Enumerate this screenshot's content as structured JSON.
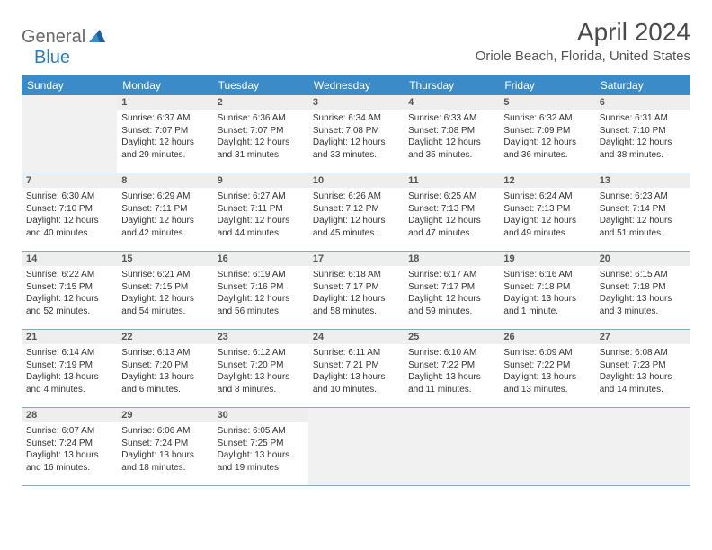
{
  "logo": {
    "word1": "General",
    "word2": "Blue"
  },
  "title": "April 2024",
  "location": "Oriole Beach, Florida, United States",
  "colors": {
    "header_bg": "#3b8bc8",
    "header_text": "#ffffff",
    "daynum_bg": "#eeeeee",
    "empty_bg": "#f1f1f1",
    "row_border": "#8aa8bd",
    "text": "#333333"
  },
  "typography": {
    "title_fontsize": 28,
    "location_fontsize": 15,
    "dayheader_fontsize": 12,
    "cell_fontsize": 10
  },
  "day_headers": [
    "Sunday",
    "Monday",
    "Tuesday",
    "Wednesday",
    "Thursday",
    "Friday",
    "Saturday"
  ],
  "weeks": [
    [
      {
        "blank": true
      },
      {
        "n": "1",
        "sr": "Sunrise: 6:37 AM",
        "ss": "Sunset: 7:07 PM",
        "d1": "Daylight: 12 hours",
        "d2": "and 29 minutes."
      },
      {
        "n": "2",
        "sr": "Sunrise: 6:36 AM",
        "ss": "Sunset: 7:07 PM",
        "d1": "Daylight: 12 hours",
        "d2": "and 31 minutes."
      },
      {
        "n": "3",
        "sr": "Sunrise: 6:34 AM",
        "ss": "Sunset: 7:08 PM",
        "d1": "Daylight: 12 hours",
        "d2": "and 33 minutes."
      },
      {
        "n": "4",
        "sr": "Sunrise: 6:33 AM",
        "ss": "Sunset: 7:08 PM",
        "d1": "Daylight: 12 hours",
        "d2": "and 35 minutes."
      },
      {
        "n": "5",
        "sr": "Sunrise: 6:32 AM",
        "ss": "Sunset: 7:09 PM",
        "d1": "Daylight: 12 hours",
        "d2": "and 36 minutes."
      },
      {
        "n": "6",
        "sr": "Sunrise: 6:31 AM",
        "ss": "Sunset: 7:10 PM",
        "d1": "Daylight: 12 hours",
        "d2": "and 38 minutes."
      }
    ],
    [
      {
        "n": "7",
        "sr": "Sunrise: 6:30 AM",
        "ss": "Sunset: 7:10 PM",
        "d1": "Daylight: 12 hours",
        "d2": "and 40 minutes."
      },
      {
        "n": "8",
        "sr": "Sunrise: 6:29 AM",
        "ss": "Sunset: 7:11 PM",
        "d1": "Daylight: 12 hours",
        "d2": "and 42 minutes."
      },
      {
        "n": "9",
        "sr": "Sunrise: 6:27 AM",
        "ss": "Sunset: 7:11 PM",
        "d1": "Daylight: 12 hours",
        "d2": "and 44 minutes."
      },
      {
        "n": "10",
        "sr": "Sunrise: 6:26 AM",
        "ss": "Sunset: 7:12 PM",
        "d1": "Daylight: 12 hours",
        "d2": "and 45 minutes."
      },
      {
        "n": "11",
        "sr": "Sunrise: 6:25 AM",
        "ss": "Sunset: 7:13 PM",
        "d1": "Daylight: 12 hours",
        "d2": "and 47 minutes."
      },
      {
        "n": "12",
        "sr": "Sunrise: 6:24 AM",
        "ss": "Sunset: 7:13 PM",
        "d1": "Daylight: 12 hours",
        "d2": "and 49 minutes."
      },
      {
        "n": "13",
        "sr": "Sunrise: 6:23 AM",
        "ss": "Sunset: 7:14 PM",
        "d1": "Daylight: 12 hours",
        "d2": "and 51 minutes."
      }
    ],
    [
      {
        "n": "14",
        "sr": "Sunrise: 6:22 AM",
        "ss": "Sunset: 7:15 PM",
        "d1": "Daylight: 12 hours",
        "d2": "and 52 minutes."
      },
      {
        "n": "15",
        "sr": "Sunrise: 6:21 AM",
        "ss": "Sunset: 7:15 PM",
        "d1": "Daylight: 12 hours",
        "d2": "and 54 minutes."
      },
      {
        "n": "16",
        "sr": "Sunrise: 6:19 AM",
        "ss": "Sunset: 7:16 PM",
        "d1": "Daylight: 12 hours",
        "d2": "and 56 minutes."
      },
      {
        "n": "17",
        "sr": "Sunrise: 6:18 AM",
        "ss": "Sunset: 7:17 PM",
        "d1": "Daylight: 12 hours",
        "d2": "and 58 minutes."
      },
      {
        "n": "18",
        "sr": "Sunrise: 6:17 AM",
        "ss": "Sunset: 7:17 PM",
        "d1": "Daylight: 12 hours",
        "d2": "and 59 minutes."
      },
      {
        "n": "19",
        "sr": "Sunrise: 6:16 AM",
        "ss": "Sunset: 7:18 PM",
        "d1": "Daylight: 13 hours",
        "d2": "and 1 minute."
      },
      {
        "n": "20",
        "sr": "Sunrise: 6:15 AM",
        "ss": "Sunset: 7:18 PM",
        "d1": "Daylight: 13 hours",
        "d2": "and 3 minutes."
      }
    ],
    [
      {
        "n": "21",
        "sr": "Sunrise: 6:14 AM",
        "ss": "Sunset: 7:19 PM",
        "d1": "Daylight: 13 hours",
        "d2": "and 4 minutes."
      },
      {
        "n": "22",
        "sr": "Sunrise: 6:13 AM",
        "ss": "Sunset: 7:20 PM",
        "d1": "Daylight: 13 hours",
        "d2": "and 6 minutes."
      },
      {
        "n": "23",
        "sr": "Sunrise: 6:12 AM",
        "ss": "Sunset: 7:20 PM",
        "d1": "Daylight: 13 hours",
        "d2": "and 8 minutes."
      },
      {
        "n": "24",
        "sr": "Sunrise: 6:11 AM",
        "ss": "Sunset: 7:21 PM",
        "d1": "Daylight: 13 hours",
        "d2": "and 10 minutes."
      },
      {
        "n": "25",
        "sr": "Sunrise: 6:10 AM",
        "ss": "Sunset: 7:22 PM",
        "d1": "Daylight: 13 hours",
        "d2": "and 11 minutes."
      },
      {
        "n": "26",
        "sr": "Sunrise: 6:09 AM",
        "ss": "Sunset: 7:22 PM",
        "d1": "Daylight: 13 hours",
        "d2": "and 13 minutes."
      },
      {
        "n": "27",
        "sr": "Sunrise: 6:08 AM",
        "ss": "Sunset: 7:23 PM",
        "d1": "Daylight: 13 hours",
        "d2": "and 14 minutes."
      }
    ],
    [
      {
        "n": "28",
        "sr": "Sunrise: 6:07 AM",
        "ss": "Sunset: 7:24 PM",
        "d1": "Daylight: 13 hours",
        "d2": "and 16 minutes."
      },
      {
        "n": "29",
        "sr": "Sunrise: 6:06 AM",
        "ss": "Sunset: 7:24 PM",
        "d1": "Daylight: 13 hours",
        "d2": "and 18 minutes."
      },
      {
        "n": "30",
        "sr": "Sunrise: 6:05 AM",
        "ss": "Sunset: 7:25 PM",
        "d1": "Daylight: 13 hours",
        "d2": "and 19 minutes."
      },
      {
        "blank": true
      },
      {
        "blank": true
      },
      {
        "blank": true
      },
      {
        "blank": true
      }
    ]
  ]
}
